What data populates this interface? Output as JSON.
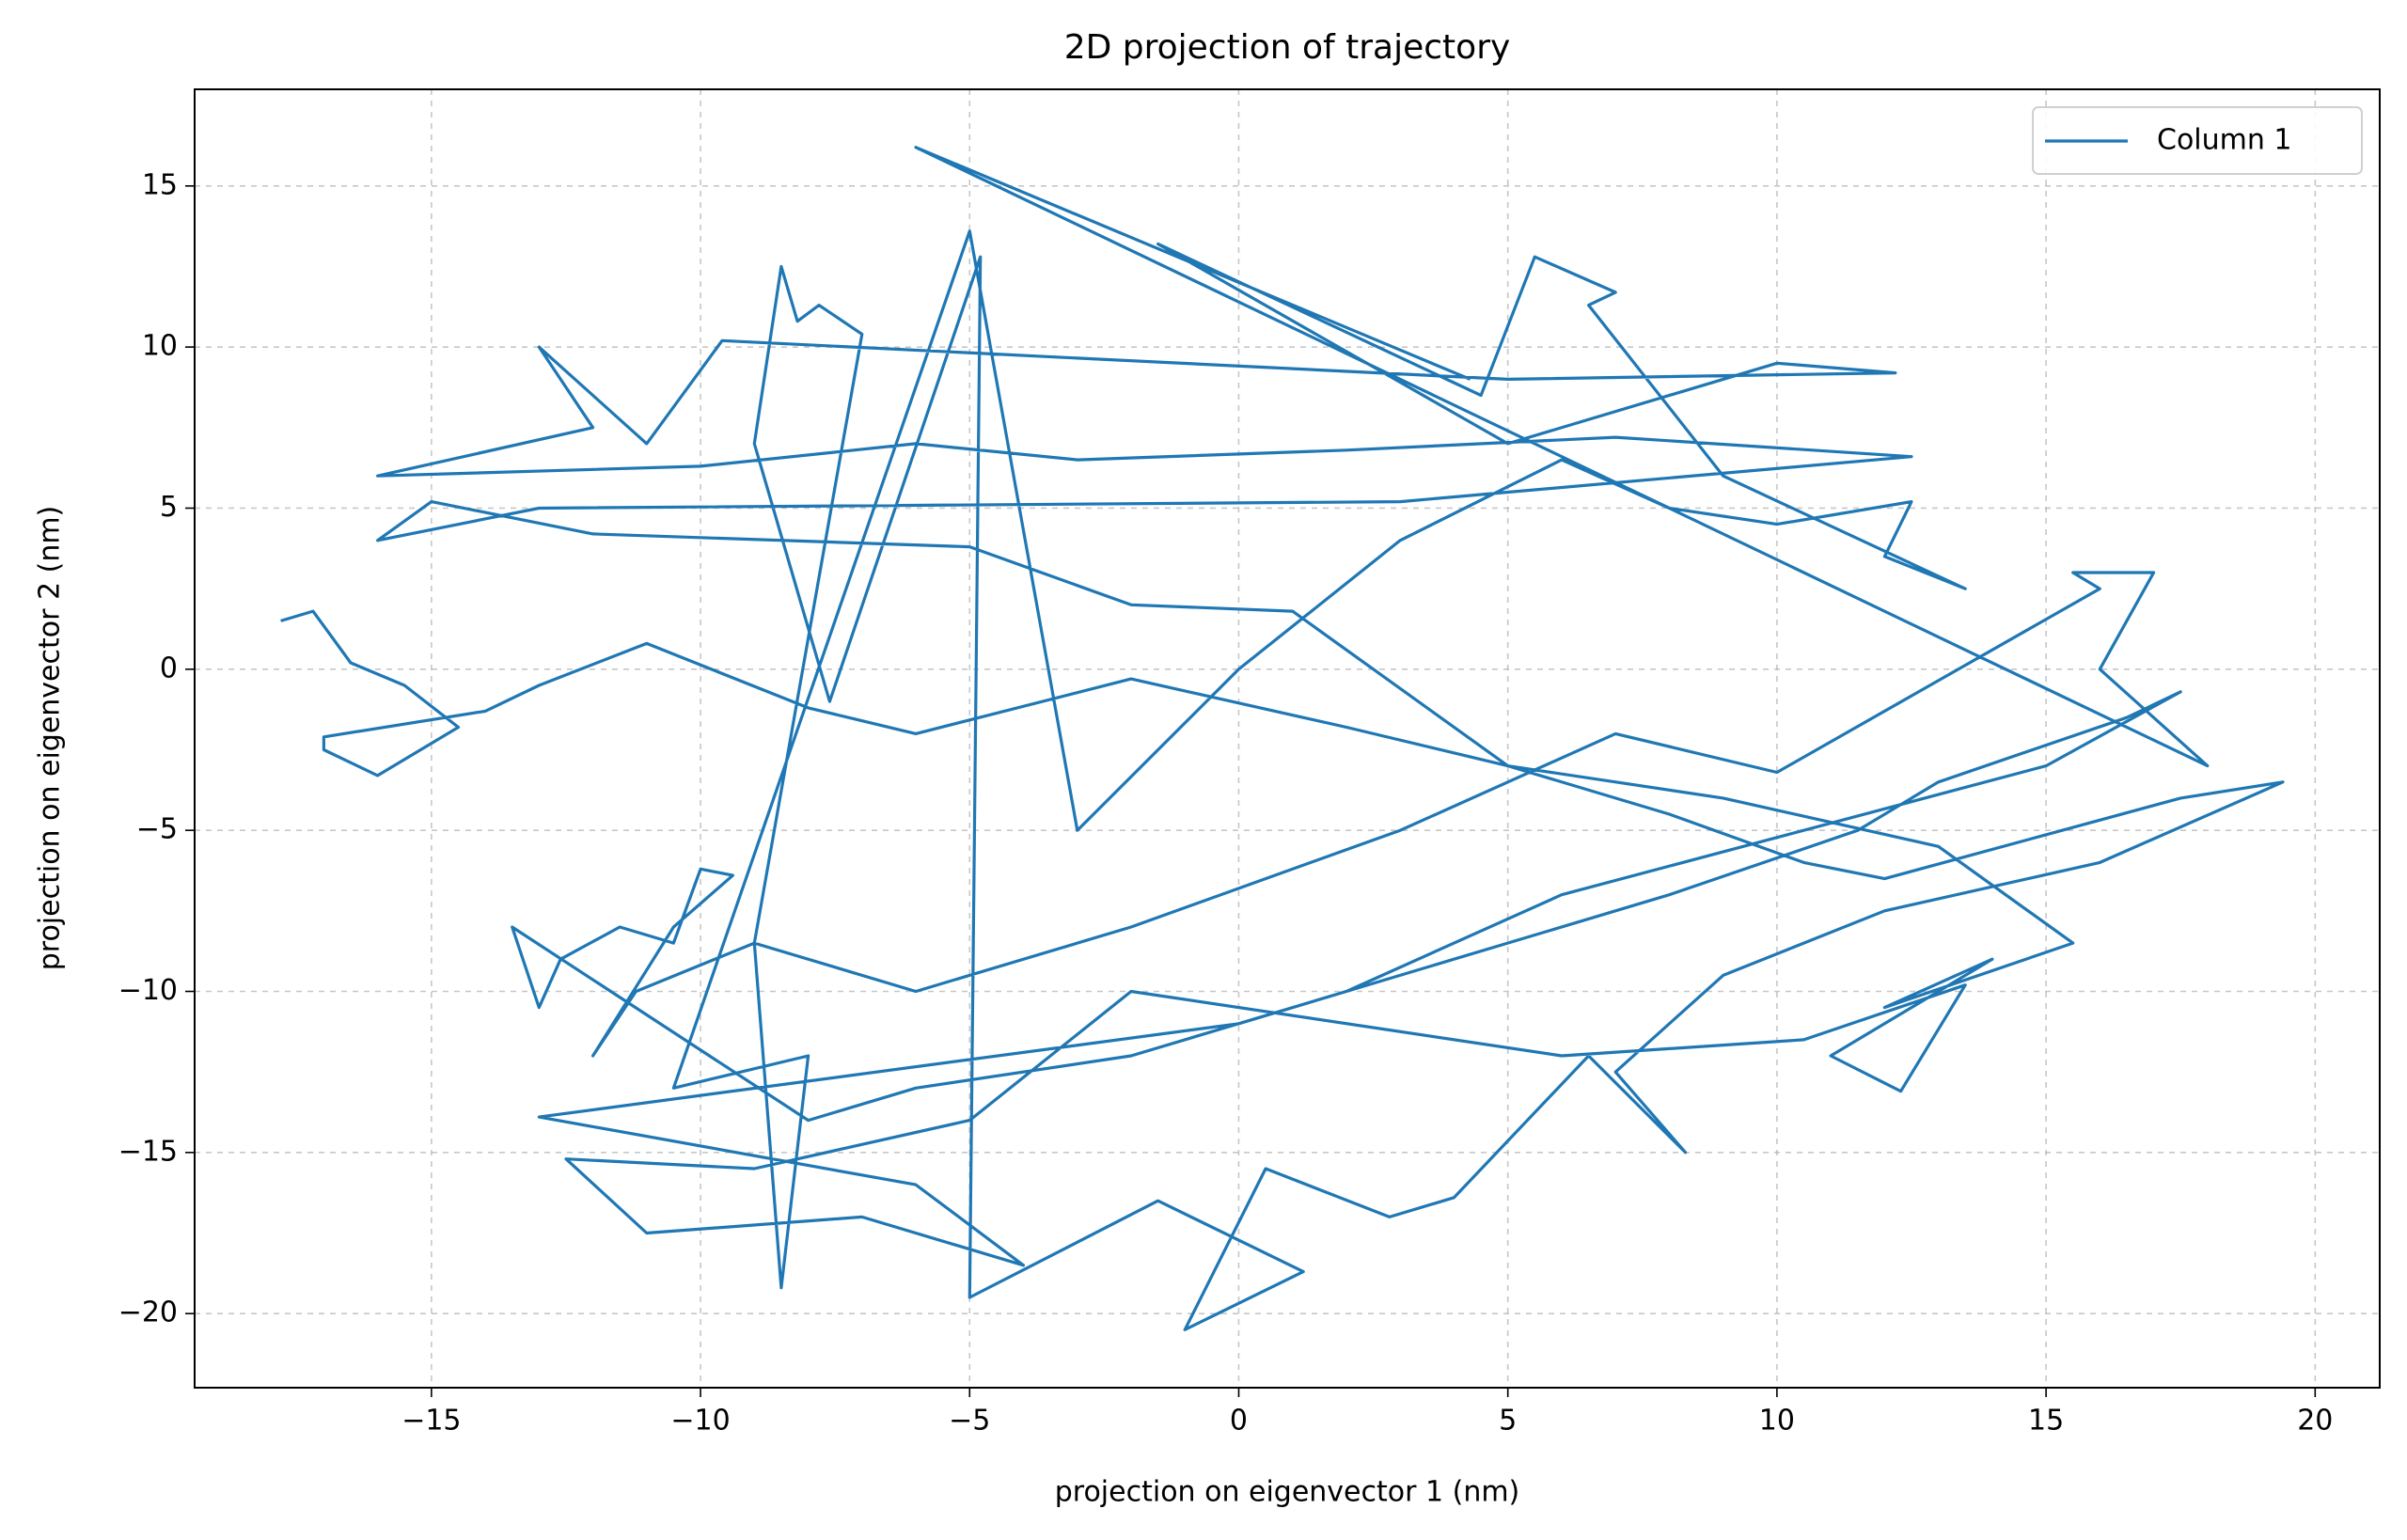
{
  "chart_data": {
    "type": "line",
    "title": "2D projection of trajectory",
    "xlabel": "projection on eigenvector 1 (nm)",
    "ylabel": "projection on eigenvector 2 (nm)",
    "xlim": [
      -19.4,
      21.2
    ],
    "ylim": [
      -22.3,
      18.0
    ],
    "xticks": [
      {
        "value": -15,
        "label": "−15"
      },
      {
        "value": -10,
        "label": "−10"
      },
      {
        "value": -5,
        "label": "−5"
      },
      0,
      5,
      10,
      15,
      20
    ],
    "yticks": [
      {
        "value": -20,
        "label": "−20"
      },
      {
        "value": -15,
        "label": "−15"
      },
      {
        "value": -10,
        "label": "−10"
      },
      {
        "value": -5,
        "label": "−5"
      },
      0,
      5,
      10,
      15
    ],
    "grid": true,
    "legend": "upper right",
    "x": [
      -17.8,
      -17.2,
      -16.5,
      -15.5,
      -14.5,
      -16,
      -17,
      -17,
      -14,
      -13,
      -11,
      -8,
      -6,
      -2,
      2,
      5,
      8,
      10.5,
      12,
      17.5,
      19.4,
      16,
      12,
      9,
      7,
      8.3,
      6.5,
      4,
      2.8,
      0.5,
      -1,
      1.2,
      -1.5,
      -5,
      -4.8,
      -7.6,
      -9,
      -8.5,
      -8.2,
      -7.8,
      -7,
      -9,
      -8.5,
      -8,
      -10.5,
      -5,
      -3,
      0,
      3,
      6,
      8,
      10,
      12.5,
      12,
      13.5,
      9,
      6.5,
      7,
      5.5,
      4.5,
      -1.5,
      5,
      10,
      12.2,
      5,
      -9.6,
      -11,
      -13,
      -12,
      -16,
      -10,
      -6,
      -3,
      2,
      7,
      12.5,
      3,
      -13,
      -16,
      -15,
      -12,
      -5,
      -2,
      1,
      5,
      9,
      13,
      15.5,
      12,
      14,
      11,
      12.3,
      13.5,
      10.5,
      6,
      -2,
      -5,
      -9,
      -12.5,
      -11,
      -7,
      -4,
      -6,
      -13,
      0,
      4,
      8,
      11.5,
      13,
      16.5,
      17.5,
      15,
      6,
      2,
      -2,
      -6,
      -8,
      -13.5,
      -13,
      -12.6,
      -11.5,
      -10.5,
      -10,
      -9.4,
      -10.5,
      -12,
      -11.2,
      -9,
      -6,
      -2,
      3,
      7,
      10,
      16,
      15.5,
      17,
      16,
      18,
      -6,
      4.3
    ],
    "series": [
      {
        "name": "Column 1",
        "color": "#1f77b4",
        "values": [
          1.5,
          1.8,
          0.2,
          -0.5,
          -1.8,
          -3.3,
          -2.5,
          -2.1,
          -1.3,
          -0.5,
          0.8,
          -1.2,
          -2,
          -0.3,
          -1.8,
          -3,
          -4.5,
          -6,
          -6.5,
          -4,
          -3.5,
          -6,
          -7.5,
          -9.5,
          -12.5,
          -15,
          -12,
          -16.4,
          -17,
          -15.5,
          -20.5,
          -18.7,
          -16.5,
          -19.5,
          12.8,
          -1,
          7,
          12.5,
          10.8,
          11.3,
          10.4,
          -8.5,
          -19.2,
          -12,
          -13,
          13.6,
          -5,
          0,
          4,
          6.5,
          5,
          4.5,
          5.2,
          3.5,
          2.5,
          6,
          11.3,
          11.7,
          12.8,
          8.5,
          13.2,
          7,
          9.5,
          9.2,
          9,
          10.2,
          7,
          10,
          7.5,
          6,
          6.3,
          7,
          6.5,
          6.8,
          7.2,
          6.6,
          5.2,
          5,
          4,
          5.2,
          4.2,
          3.8,
          2,
          1.8,
          -3,
          -4,
          -5.5,
          -8.5,
          -10.5,
          -9,
          -12,
          -13.1,
          -9.8,
          -11.5,
          -12,
          -10,
          -14,
          -15.5,
          -15.2,
          -17.5,
          -17,
          -18.5,
          -16,
          -13.9,
          -11,
          -9,
          -7,
          -5,
          -3.5,
          -1.5,
          -0.7,
          -3,
          -7,
          -10,
          -12,
          -13,
          -14,
          -8,
          -10.5,
          -9,
          -8,
          -8.5,
          -6.2,
          -6.4,
          -8,
          -12,
          -10,
          -8.5,
          -10,
          -8,
          -5,
          -2,
          -3.2,
          2.5,
          3,
          3,
          0,
          -3,
          16.2,
          9
        ]
      }
    ]
  }
}
